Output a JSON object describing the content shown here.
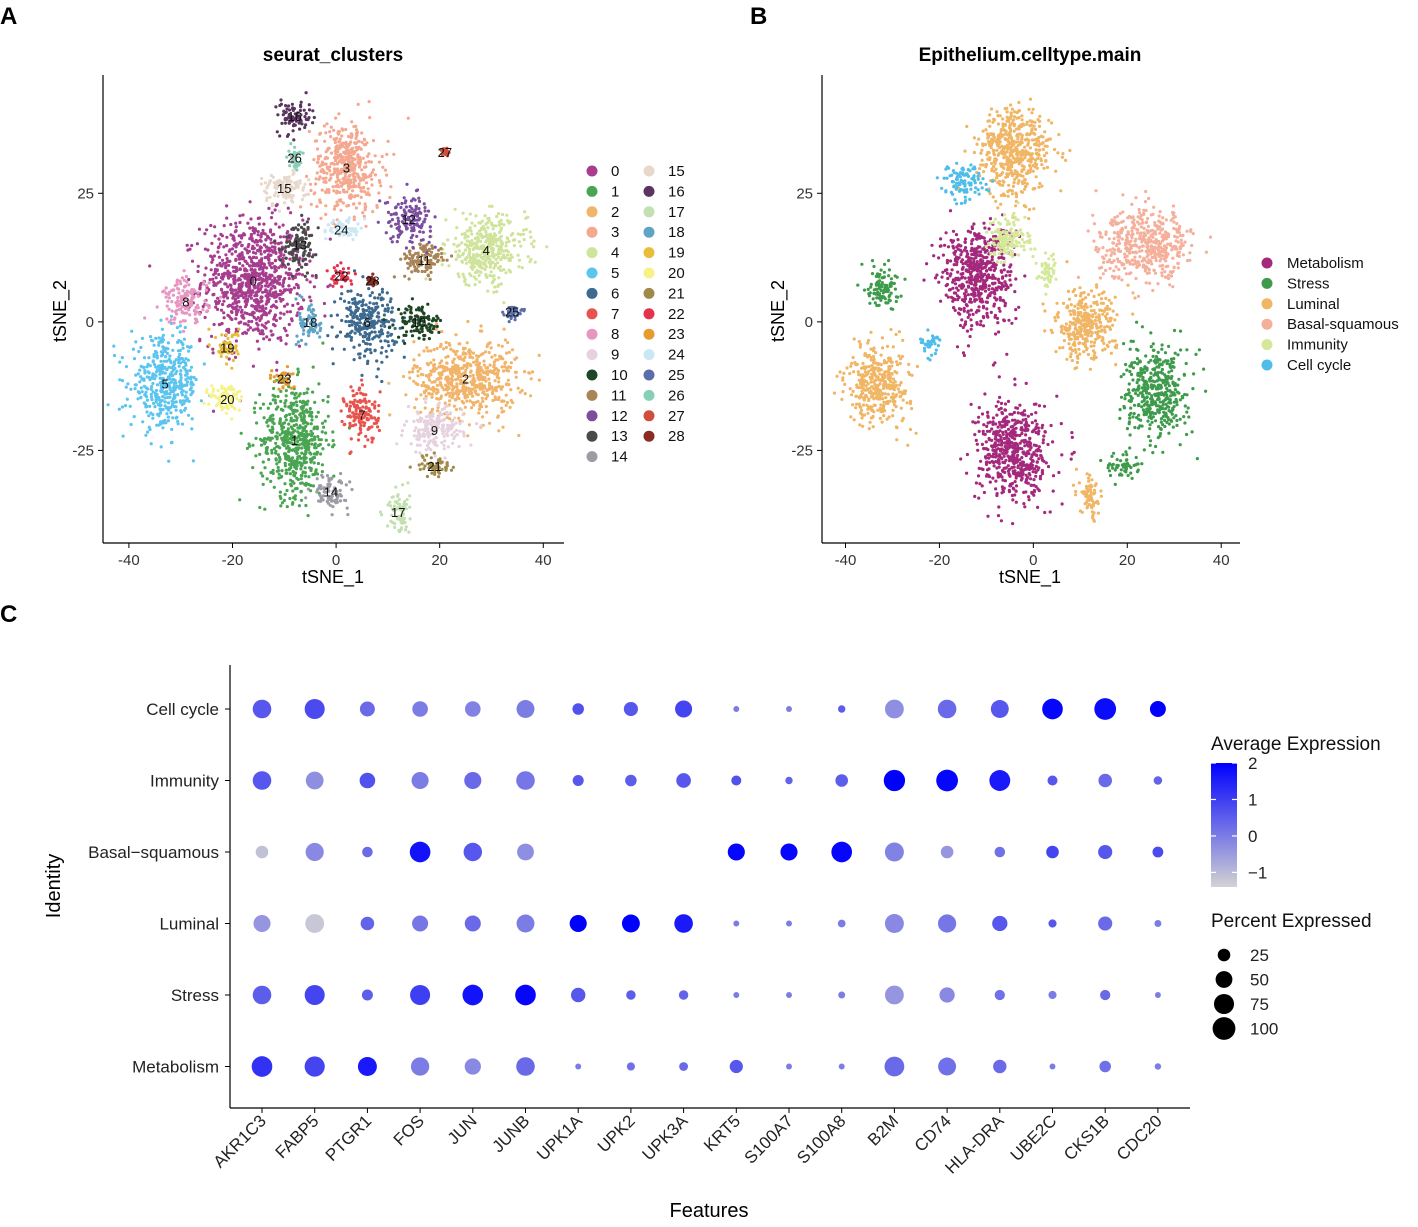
{
  "panel_labels": {
    "a": "A",
    "b": "B",
    "c": "C"
  },
  "chart_data": [
    {
      "type": "scatter",
      "subtype": "tsne-clusters",
      "title": "seurat_clusters",
      "xlabel": "tSNE_1",
      "ylabel": "tSNE_2",
      "xlim": [
        -45,
        44
      ],
      "ylim": [
        -43,
        48
      ],
      "xticks": [
        "-40",
        "-20",
        "0",
        "20",
        "40"
      ],
      "xtick_values": [
        -40,
        -20,
        0,
        20,
        40
      ],
      "yticks": [
        "-25",
        "0",
        "25"
      ],
      "ytick_values": [
        -25,
        0,
        25
      ],
      "legend_labels": [
        "0",
        "1",
        "2",
        "3",
        "4",
        "5",
        "6",
        "7",
        "8",
        "9",
        "10",
        "11",
        "12",
        "13",
        "14",
        "15",
        "16",
        "17",
        "18",
        "19",
        "20",
        "21",
        "22",
        "23",
        "24",
        "25",
        "26",
        "27",
        "28"
      ],
      "cluster_colors": [
        "#a63d8f",
        "#4aa552",
        "#f2b46a",
        "#f5a890",
        "#cfe39a",
        "#5bc4ef",
        "#3e6a8f",
        "#e8544d",
        "#e796c2",
        "#e6d2de",
        "#1e4624",
        "#a88456",
        "#7a4f9e",
        "#4a4a4a",
        "#9c9ca4",
        "#e8d8cc",
        "#5a3560",
        "#c4dfb0",
        "#5fa4c4",
        "#e7bd3a",
        "#f6f28a",
        "#a08a4a",
        "#e5334e",
        "#e69b2f",
        "#c9e7f5",
        "#5a6faa",
        "#88cfb7",
        "#d04f3c",
        "#8a2c22"
      ],
      "cluster_centers": [
        {
          "label": "0",
          "x": -16,
          "y": 8,
          "sx": 9,
          "sy": 11
        },
        {
          "label": "1",
          "x": -8,
          "y": -23,
          "sx": 6,
          "sy": 10
        },
        {
          "label": "2",
          "x": 25,
          "y": -11,
          "sx": 9,
          "sy": 7
        },
        {
          "label": "3",
          "x": 2,
          "y": 30,
          "sx": 6,
          "sy": 8
        },
        {
          "label": "4",
          "x": 29,
          "y": 14,
          "sx": 7,
          "sy": 6
        },
        {
          "label": "5",
          "x": -33,
          "y": -12,
          "sx": 6,
          "sy": 8
        },
        {
          "label": "6",
          "x": 6,
          "y": 0,
          "sx": 5,
          "sy": 6
        },
        {
          "label": "7",
          "x": 5,
          "y": -18,
          "sx": 3,
          "sy": 5
        },
        {
          "label": "8",
          "x": -29,
          "y": 4,
          "sx": 4,
          "sy": 4
        },
        {
          "label": "9",
          "x": 19,
          "y": -21,
          "sx": 5,
          "sy": 4
        },
        {
          "label": "10",
          "x": 16,
          "y": 0,
          "sx": 4,
          "sy": 3
        },
        {
          "label": "11",
          "x": 17,
          "y": 12,
          "sx": 4,
          "sy": 3
        },
        {
          "label": "12",
          "x": 14,
          "y": 20,
          "sx": 4,
          "sy": 4
        },
        {
          "label": "13",
          "x": -7,
          "y": 15,
          "sx": 3,
          "sy": 4
        },
        {
          "label": "14",
          "x": -1,
          "y": -33,
          "sx": 3,
          "sy": 3
        },
        {
          "label": "15",
          "x": -10,
          "y": 26,
          "sx": 4,
          "sy": 3
        },
        {
          "label": "16",
          "x": -8,
          "y": 40,
          "sx": 3,
          "sy": 3
        },
        {
          "label": "17",
          "x": 12,
          "y": -37,
          "sx": 2,
          "sy": 4
        },
        {
          "label": "18",
          "x": -5,
          "y": 0,
          "sx": 2,
          "sy": 4
        },
        {
          "label": "19",
          "x": -21,
          "y": -5,
          "sx": 2,
          "sy": 3
        },
        {
          "label": "20",
          "x": -21,
          "y": -15,
          "sx": 3,
          "sy": 3
        },
        {
          "label": "21",
          "x": 19,
          "y": -28,
          "sx": 3,
          "sy": 2
        },
        {
          "label": "22",
          "x": 1,
          "y": 9,
          "sx": 2,
          "sy": 2
        },
        {
          "label": "23",
          "x": -10,
          "y": -11,
          "sx": 2,
          "sy": 2
        },
        {
          "label": "24",
          "x": 1,
          "y": 18,
          "sx": 3,
          "sy": 2
        },
        {
          "label": "25",
          "x": 34,
          "y": 2,
          "sx": 1.5,
          "sy": 1
        },
        {
          "label": "26",
          "x": -8,
          "y": 32,
          "sx": 1,
          "sy": 2
        },
        {
          "label": "27",
          "x": 21,
          "y": 33,
          "sx": 0.6,
          "sy": 0.6
        },
        {
          "label": "28",
          "x": 7,
          "y": 8,
          "sx": 0.8,
          "sy": 0.8
        }
      ]
    },
    {
      "type": "scatter",
      "subtype": "tsne-celltype",
      "title": "Epithelium.celltype.main",
      "xlabel": "tSNE_1",
      "ylabel": "tSNE_2",
      "xlim": [
        -45,
        44
      ],
      "ylim": [
        -43,
        48
      ],
      "xticks": [
        "-40",
        "-20",
        "0",
        "20",
        "40"
      ],
      "xtick_values": [
        -40,
        -20,
        0,
        20,
        40
      ],
      "yticks": [
        "-25",
        "0",
        "25"
      ],
      "ytick_values": [
        -25,
        0,
        25
      ],
      "legend_labels": [
        "Metabolism",
        "Stress",
        "Luminal",
        "Basal-squamous",
        "Immunity",
        "Cell cycle"
      ],
      "celltype_colors": [
        "#a4287c",
        "#3e9b4c",
        "#f0b665",
        "#f5b09c",
        "#d5e89a",
        "#4fbde9"
      ],
      "celltype_centers": [
        {
          "label": "Metabolism",
          "x": -12,
          "y": 9,
          "sx": 7,
          "sy": 9
        },
        {
          "label": "Metabolism",
          "x": -4,
          "y": -25,
          "sx": 7,
          "sy": 9
        },
        {
          "label": "Stress",
          "x": 26,
          "y": -14,
          "sx": 6,
          "sy": 8
        },
        {
          "label": "Stress",
          "x": -32,
          "y": 7,
          "sx": 3,
          "sy": 4
        },
        {
          "label": "Stress",
          "x": 19,
          "y": -28,
          "sx": 3,
          "sy": 2
        },
        {
          "label": "Luminal",
          "x": -33,
          "y": -12,
          "sx": 6,
          "sy": 7
        },
        {
          "label": "Luminal",
          "x": -4,
          "y": 33,
          "sx": 7,
          "sy": 8
        },
        {
          "label": "Luminal",
          "x": 11,
          "y": -1,
          "sx": 6,
          "sy": 6
        },
        {
          "label": "Luminal",
          "x": 12,
          "y": -34,
          "sx": 2,
          "sy": 4
        },
        {
          "label": "Basal-squamous",
          "x": 24,
          "y": 15,
          "sx": 9,
          "sy": 6
        },
        {
          "label": "Immunity",
          "x": -5,
          "y": 16,
          "sx": 4,
          "sy": 4
        },
        {
          "label": "Immunity",
          "x": 3,
          "y": 10,
          "sx": 2,
          "sy": 3
        },
        {
          "label": "Cell cycle",
          "x": -15,
          "y": 27,
          "sx": 4,
          "sy": 3
        },
        {
          "label": "Cell cycle",
          "x": -22,
          "y": -4,
          "sx": 2,
          "sy": 2
        }
      ]
    },
    {
      "type": "dotplot",
      "xlabel": "Features",
      "ylabel": "Identity",
      "features": [
        "AKR1C3",
        "FABP5",
        "PTGR1",
        "FOS",
        "JUN",
        "JUNB",
        "UPK1A",
        "UPK2",
        "UPK3A",
        "KRT5",
        "S100A7",
        "S100A8",
        "B2M",
        "CD74",
        "HLA-DRA",
        "UBE2C",
        "CKS1B",
        "CDC20"
      ],
      "identities": [
        "Cell cycle",
        "Immunity",
        "Basal−squamous",
        "Luminal",
        "Stress",
        "Metabolism"
      ],
      "color_legend_title": "Average Expression",
      "color_ticks": [
        "2",
        "1",
        "0",
        "−1"
      ],
      "color_tick_values": [
        2,
        1,
        0,
        -1
      ],
      "color_range": [
        -1.4,
        2.0
      ],
      "color_low": "#d3d3d3",
      "color_high": "#0000ff",
      "size_legend_title": "Percent Expressed",
      "size_ticks": [
        "25",
        "50",
        "75",
        "100"
      ],
      "size_tick_values": [
        25,
        50,
        75,
        100
      ],
      "rows": [
        {
          "identity": "Cell cycle",
          "expr": [
            0.6,
            0.8,
            0.3,
            0.0,
            -0.1,
            0.0,
            0.7,
            0.6,
            0.9,
            0.0,
            0.0,
            0.5,
            -0.3,
            0.3,
            0.6,
            1.9,
            1.8,
            2.0
          ],
          "pct": [
            63,
            75,
            38,
            42,
            42,
            58,
            20,
            33,
            52,
            3,
            3,
            6,
            65,
            63,
            58,
            80,
            90,
            44
          ]
        },
        {
          "identity": "Immunity",
          "expr": [
            0.6,
            -0.3,
            0.7,
            0.0,
            0.3,
            0.1,
            0.6,
            0.5,
            0.6,
            0.7,
            0.4,
            0.5,
            2.0,
            1.9,
            1.6,
            0.6,
            0.3,
            0.4
          ],
          "pct": [
            63,
            57,
            42,
            52,
            52,
            63,
            18,
            20,
            36,
            14,
            6,
            25,
            86,
            90,
            82,
            14,
            30,
            9
          ]
        },
        {
          "identity": "Basal−squamous",
          "expr": [
            -1.1,
            -0.2,
            0.3,
            1.7,
            0.6,
            -0.3,
            0.0,
            0.0,
            0.0,
            1.9,
            1.9,
            1.9,
            -0.1,
            -0.4,
            0.2,
            0.9,
            0.6,
            0.8
          ],
          "pct": [
            25,
            60,
            16,
            80,
            62,
            50,
            0,
            0,
            0,
            52,
            52,
            80,
            66,
            25,
            16,
            25,
            33,
            17
          ]
        },
        {
          "identity": "Luminal",
          "expr": [
            -0.4,
            -1.2,
            0.4,
            0.1,
            0.3,
            0.0,
            2.0,
            2.0,
            1.6,
            0.0,
            0.0,
            0.0,
            -0.2,
            0.1,
            0.6,
            0.6,
            0.3,
            0.0
          ],
          "pct": [
            52,
            65,
            30,
            45,
            45,
            58,
            52,
            58,
            63,
            3,
            3,
            7,
            66,
            60,
            40,
            8,
            33,
            5
          ]
        },
        {
          "identity": "Stress",
          "expr": [
            0.5,
            0.9,
            0.5,
            1.0,
            1.7,
            1.9,
            0.6,
            0.5,
            0.4,
            0.0,
            0.0,
            0.0,
            -0.4,
            -0.2,
            0.2,
            0.0,
            0.3,
            0.0
          ],
          "pct": [
            63,
            75,
            18,
            75,
            80,
            80,
            35,
            12,
            12,
            3,
            3,
            5,
            65,
            40,
            15,
            8,
            15,
            3
          ]
        },
        {
          "identity": "Metabolism",
          "expr": [
            1.2,
            0.9,
            1.6,
            0.0,
            -0.2,
            0.3,
            0.0,
            0.2,
            0.3,
            0.6,
            0.0,
            0.0,
            0.3,
            0.2,
            0.3,
            0.0,
            0.2,
            0.0
          ],
          "pct": [
            80,
            76,
            66,
            61,
            46,
            63,
            3,
            8,
            10,
            28,
            3,
            3,
            73,
            58,
            29,
            3,
            20,
            4
          ]
        }
      ]
    }
  ]
}
